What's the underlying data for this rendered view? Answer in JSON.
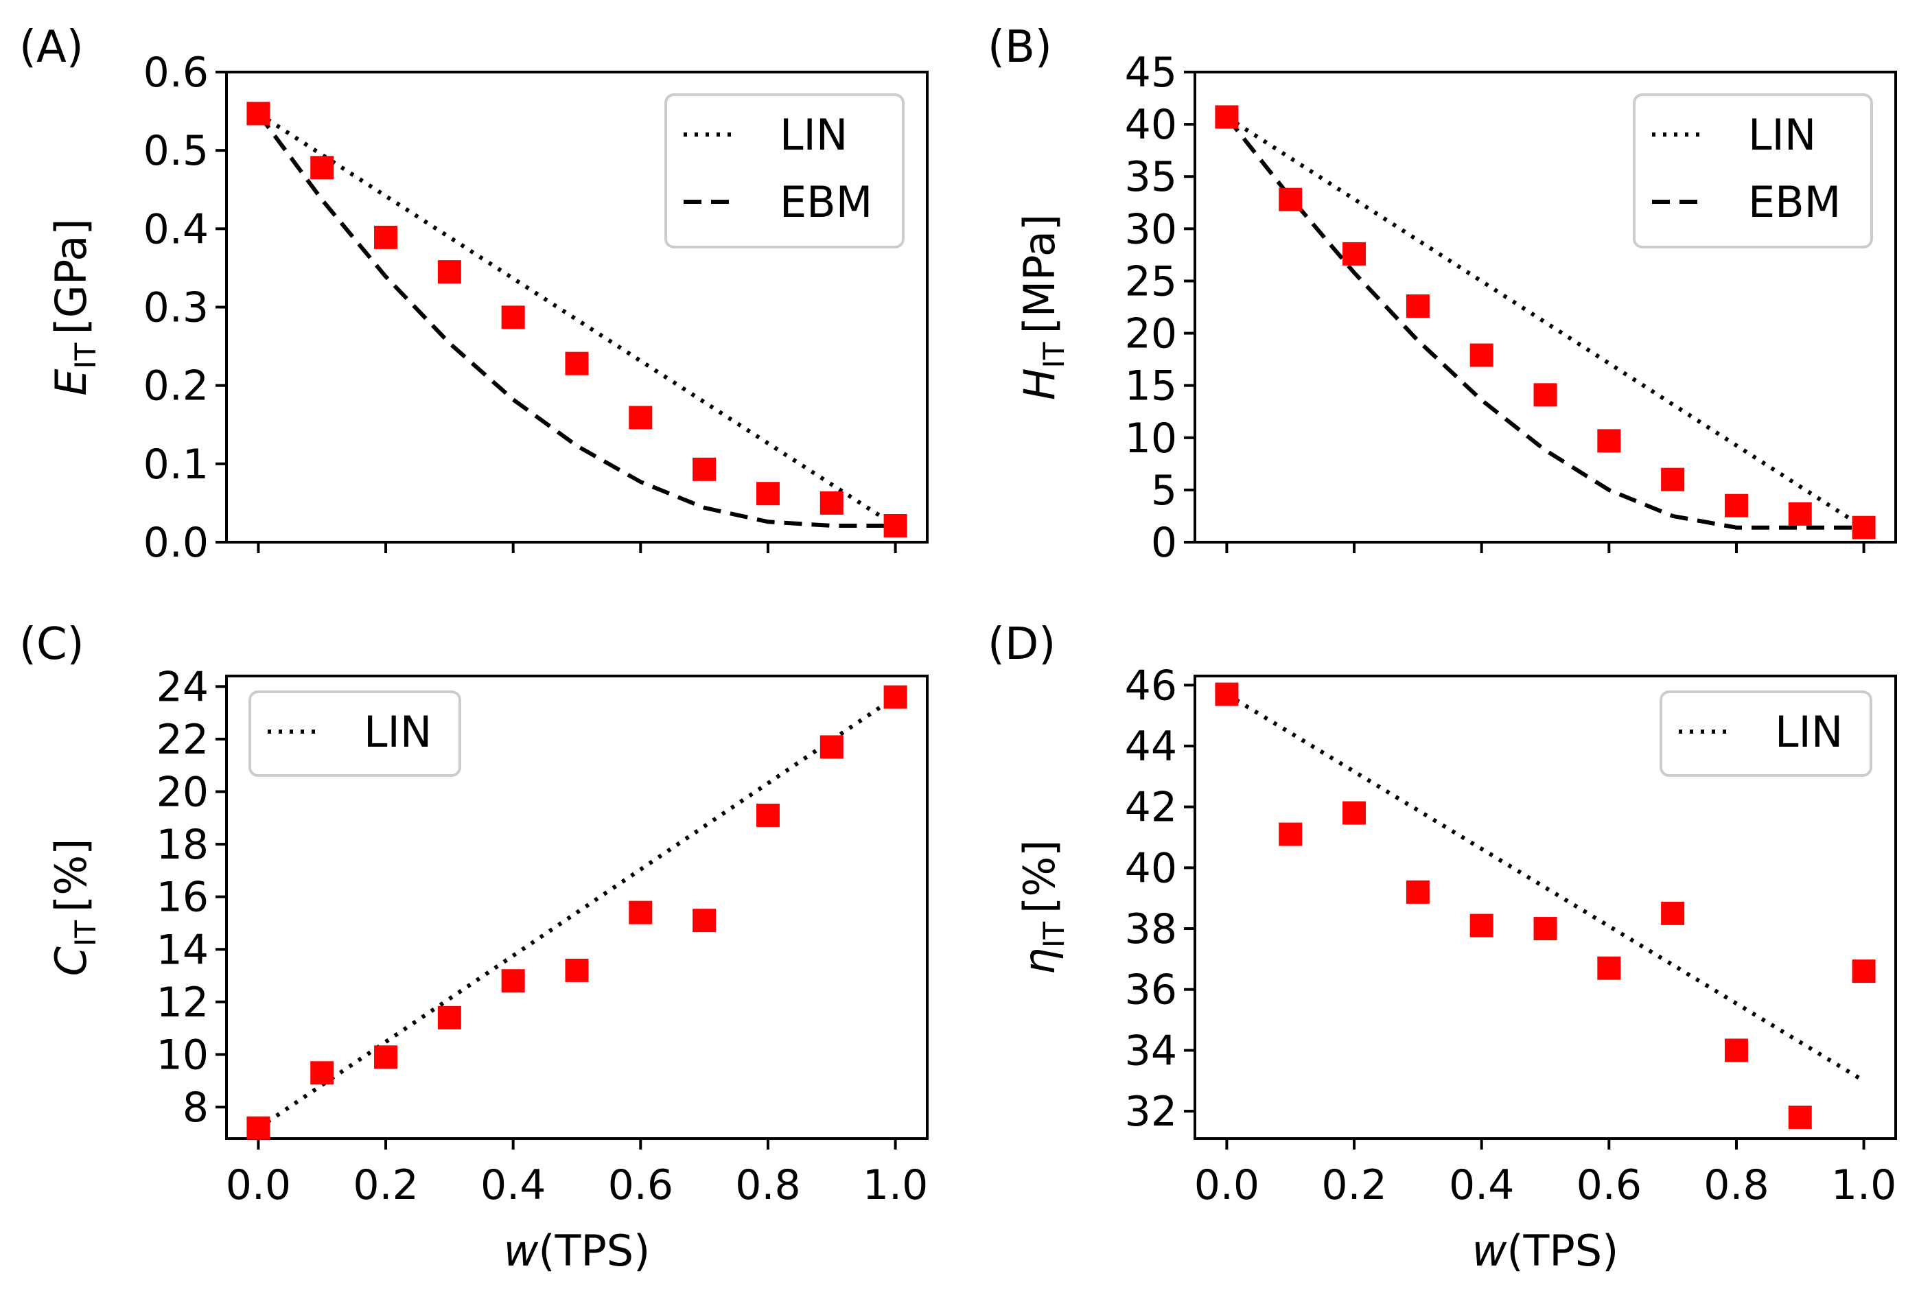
{
  "figure": {
    "x_label_prefix": "w",
    "x_label_suffix": "(TPS)"
  },
  "chart_data": [
    {
      "type": "scatter",
      "panel": "(A)",
      "ylabel_symbol": "E",
      "ylabel_subscript": "IT",
      "ylabel_unit": "[GPa]",
      "xlabel": "w(TPS)",
      "xlim": [
        -0.05,
        1.05
      ],
      "ylim": [
        0,
        0.6
      ],
      "yticks": [
        "0.0",
        "0.1",
        "0.2",
        "0.3",
        "0.4",
        "0.5",
        "0.6"
      ],
      "xticks": [
        "0.0",
        "0.2",
        "0.4",
        "0.6",
        "0.8",
        "1.0"
      ],
      "show_xtick_labels": false,
      "legend_position": "top-right",
      "x": [
        0.0,
        0.1,
        0.2,
        0.3,
        0.4,
        0.5,
        0.6,
        0.7,
        0.8,
        0.9,
        1.0
      ],
      "measured": [
        0.547,
        0.478,
        0.389,
        0.345,
        0.287,
        0.228,
        0.159,
        0.093,
        0.062,
        0.05,
        0.021
      ],
      "series": [
        {
          "name": "LIN",
          "style": "dotted",
          "x": [
            0.0,
            1.0
          ],
          "values": [
            0.547,
            0.021
          ]
        },
        {
          "name": "EBM",
          "style": "dashed",
          "x": [
            0.0,
            0.1,
            0.2,
            0.3,
            0.4,
            0.5,
            0.6,
            0.7,
            0.8,
            0.9,
            1.0
          ],
          "values": [
            0.547,
            0.437,
            0.339,
            0.254,
            0.182,
            0.123,
            0.077,
            0.044,
            0.026,
            0.021,
            0.021
          ]
        }
      ],
      "marker_color": "#ff0000"
    },
    {
      "type": "scatter",
      "panel": "(B)",
      "ylabel_symbol": "H",
      "ylabel_subscript": "IT",
      "ylabel_unit": "[MPa]",
      "xlabel": "w(TPS)",
      "xlim": [
        -0.05,
        1.05
      ],
      "ylim": [
        0,
        45
      ],
      "yticks": [
        "0",
        "5",
        "10",
        "15",
        "20",
        "25",
        "30",
        "35",
        "40",
        "45"
      ],
      "xticks": [
        "0.0",
        "0.2",
        "0.4",
        "0.6",
        "0.8",
        "1.0"
      ],
      "show_xtick_labels": false,
      "legend_position": "top-right",
      "x": [
        0.0,
        0.1,
        0.2,
        0.3,
        0.4,
        0.5,
        0.6,
        0.7,
        0.8,
        0.9,
        1.0
      ],
      "measured": [
        40.7,
        32.8,
        27.6,
        22.6,
        17.9,
        14.1,
        9.7,
        6.0,
        3.5,
        2.7,
        1.4
      ],
      "series": [
        {
          "name": "LIN",
          "style": "dotted",
          "x": [
            0.0,
            1.0
          ],
          "values": [
            40.7,
            1.4
          ]
        },
        {
          "name": "EBM",
          "style": "dashed",
          "x": [
            0.0,
            0.1,
            0.2,
            0.3,
            0.4,
            0.5,
            0.6,
            0.7,
            0.8,
            0.9,
            1.0
          ],
          "values": [
            40.7,
            33.0,
            25.8,
            19.3,
            13.6,
            8.8,
            5.0,
            2.5,
            1.4,
            1.4,
            1.4
          ]
        }
      ],
      "marker_color": "#ff0000"
    },
    {
      "type": "scatter",
      "panel": "(C)",
      "ylabel_symbol": "C",
      "ylabel_subscript": "IT",
      "ylabel_unit": "[%]",
      "xlabel": "w(TPS)",
      "xlim": [
        -0.05,
        1.05
      ],
      "ylim": [
        6.8,
        24.4
      ],
      "yticks": [
        "8",
        "10",
        "12",
        "14",
        "16",
        "18",
        "20",
        "22",
        "24"
      ],
      "xticks": [
        "0.0",
        "0.2",
        "0.4",
        "0.6",
        "0.8",
        "1.0"
      ],
      "show_xtick_labels": true,
      "legend_position": "top-left",
      "x": [
        0.0,
        0.1,
        0.2,
        0.3,
        0.4,
        0.5,
        0.6,
        0.7,
        0.8,
        0.9,
        1.0
      ],
      "measured": [
        7.2,
        9.3,
        9.9,
        11.4,
        12.8,
        13.2,
        15.4,
        15.1,
        19.1,
        21.7,
        23.6
      ],
      "series": [
        {
          "name": "LIN",
          "style": "dotted",
          "x": [
            0.0,
            1.0
          ],
          "values": [
            7.2,
            23.6
          ]
        }
      ],
      "marker_color": "#ff0000"
    },
    {
      "type": "scatter",
      "panel": "(D)",
      "ylabel_symbol": "η",
      "ylabel_subscript": "IT",
      "ylabel_unit": "[%]",
      "xlabel": "w(TPS)",
      "xlim": [
        -0.05,
        1.05
      ],
      "ylim": [
        31.1,
        46.3
      ],
      "yticks": [
        "32",
        "34",
        "36",
        "38",
        "40",
        "42",
        "44",
        "46"
      ],
      "xticks": [
        "0.0",
        "0.2",
        "0.4",
        "0.6",
        "0.8",
        "1.0"
      ],
      "show_xtick_labels": true,
      "legend_position": "top-right",
      "x": [
        0.0,
        0.1,
        0.2,
        0.3,
        0.4,
        0.5,
        0.6,
        0.7,
        0.8,
        0.9,
        1.0
      ],
      "measured": [
        45.7,
        41.1,
        41.8,
        39.2,
        38.1,
        38.0,
        36.7,
        38.5,
        34.0,
        31.8,
        36.6
      ],
      "series": [
        {
          "name": "LIN",
          "style": "dotted",
          "x": [
            0.0,
            1.0
          ],
          "values": [
            45.7,
            33.0
          ]
        }
      ],
      "marker_color": "#ff0000"
    }
  ]
}
